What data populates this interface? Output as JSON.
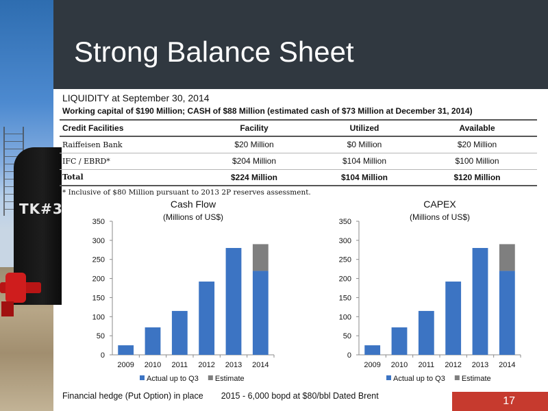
{
  "slide": {
    "title": "Strong Balance Sheet",
    "liquidity_heading": "LIQUIDITY at September 30, 2014",
    "working_capital": "Working capital of $190 Million; CASH of $88 Million (estimated cash of $73 Million at December 31, 2014)",
    "footnote": "* Inclusive of $80 Million pursuant to 2013 2P reserves assessment.",
    "hedge_note": "Financial hedge (Put Option) in place",
    "hedge_detail": "2015 - 6,000 bopd at $80/bbl Dated Brent",
    "page_number": "17",
    "photo_label": "TK#3"
  },
  "credit_table": {
    "headers": [
      "Credit Facilities",
      "Facility",
      "Utilized",
      "Available"
    ],
    "rows": [
      [
        "Raiffeisen Bank",
        "$20 Million",
        "$0 Million",
        "$20 Million"
      ],
      [
        "IFC / EBRD*",
        "$204 Million",
        "$104 Million",
        "$100 Million"
      ]
    ],
    "total": [
      "Total",
      "$224 Million",
      "$104 Million",
      "$120 Million"
    ]
  },
  "colors": {
    "title_bar": "#303840",
    "actual_series": "#3c74c3",
    "estimate_series": "#7f7f7f",
    "page_badge": "#c63a2e"
  },
  "chart_data": [
    {
      "type": "bar",
      "stacked": true,
      "title": "Cash Flow",
      "subtitle": "(Millions of US$)",
      "categories": [
        "2009",
        "2010",
        "2011",
        "2012",
        "2013",
        "2014"
      ],
      "series": [
        {
          "name": "Actual up to Q3",
          "values": [
            25,
            72,
            115,
            192,
            280,
            220
          ]
        },
        {
          "name": "Estimate",
          "values": [
            0,
            0,
            0,
            0,
            0,
            70
          ]
        }
      ],
      "ylim": [
        0,
        350
      ],
      "yticks": [
        0,
        50,
        100,
        150,
        200,
        250,
        300,
        350
      ],
      "legend": "bottom",
      "grid": false
    },
    {
      "type": "bar",
      "stacked": true,
      "title": "CAPEX",
      "subtitle": "(Millions of US$)",
      "categories": [
        "2009",
        "2010",
        "2011",
        "2012",
        "2013",
        "2014"
      ],
      "series": [
        {
          "name": "Actual up to Q3",
          "values": [
            25,
            72,
            115,
            192,
            280,
            220
          ]
        },
        {
          "name": "Estimate",
          "values": [
            0,
            0,
            0,
            0,
            0,
            70
          ]
        }
      ],
      "ylim": [
        0,
        350
      ],
      "yticks": [
        0,
        50,
        100,
        150,
        200,
        250,
        300,
        350
      ],
      "legend": "bottom",
      "grid": false
    }
  ]
}
